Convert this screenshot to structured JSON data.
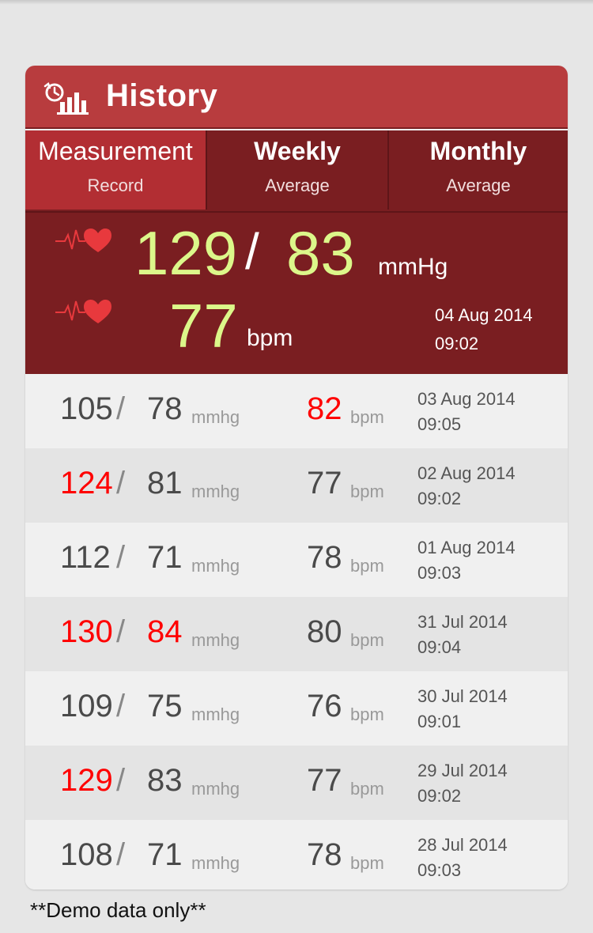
{
  "header": {
    "title": "History",
    "icon": "history-chart-icon"
  },
  "tabs": [
    {
      "line1": "Measurement",
      "line2": "Record",
      "active": true
    },
    {
      "line1": "Weekly",
      "line2": "Average",
      "active": false
    },
    {
      "line1": "Monthly",
      "line2": "Average",
      "active": false
    }
  ],
  "latest": {
    "systolic": "129",
    "diastolic": "83",
    "bp_unit": "mmHg",
    "pulse": "77",
    "pulse_unit": "bpm",
    "date": "04 Aug 2014",
    "time": "09:02"
  },
  "records": [
    {
      "systolic": "105",
      "diastolic": "78",
      "bp_unit": "mmhg",
      "pulse": "82",
      "pulse_unit": "bpm",
      "date": "03 Aug 2014",
      "time": "09:05",
      "sys_high": false,
      "dia_high": false,
      "pulse_high": true
    },
    {
      "systolic": "124",
      "diastolic": "81",
      "bp_unit": "mmhg",
      "pulse": "77",
      "pulse_unit": "bpm",
      "date": "02 Aug 2014",
      "time": "09:02",
      "sys_high": true,
      "dia_high": false,
      "pulse_high": false
    },
    {
      "systolic": "112",
      "diastolic": "71",
      "bp_unit": "mmhg",
      "pulse": "78",
      "pulse_unit": "bpm",
      "date": "01 Aug 2014",
      "time": "09:03",
      "sys_high": false,
      "dia_high": false,
      "pulse_high": false
    },
    {
      "systolic": "130",
      "diastolic": "84",
      "bp_unit": "mmhg",
      "pulse": "80",
      "pulse_unit": "bpm",
      "date": "31 Jul 2014",
      "time": "09:04",
      "sys_high": true,
      "dia_high": true,
      "pulse_high": false
    },
    {
      "systolic": "109",
      "diastolic": "75",
      "bp_unit": "mmhg",
      "pulse": "76",
      "pulse_unit": "bpm",
      "date": "30 Jul 2014",
      "time": "09:01",
      "sys_high": false,
      "dia_high": false,
      "pulse_high": false
    },
    {
      "systolic": "129",
      "diastolic": "83",
      "bp_unit": "mmhg",
      "pulse": "77",
      "pulse_unit": "bpm",
      "date": "29 Jul 2014",
      "time": "09:02",
      "sys_high": true,
      "dia_high": false,
      "pulse_high": false
    },
    {
      "systolic": "108",
      "diastolic": "71",
      "bp_unit": "mmhg",
      "pulse": "78",
      "pulse_unit": "bpm",
      "date": "28 Jul 2014",
      "time": "09:03",
      "sys_high": false,
      "dia_high": false,
      "pulse_high": false
    }
  ],
  "footer": {
    "note": "**Demo data only**"
  },
  "colors": {
    "header": "#b83c3e",
    "dark_red": "#7a1e21",
    "active_tab": "#b22e33",
    "value_green": "#dcf78a",
    "alert_red": "#ff0000"
  }
}
